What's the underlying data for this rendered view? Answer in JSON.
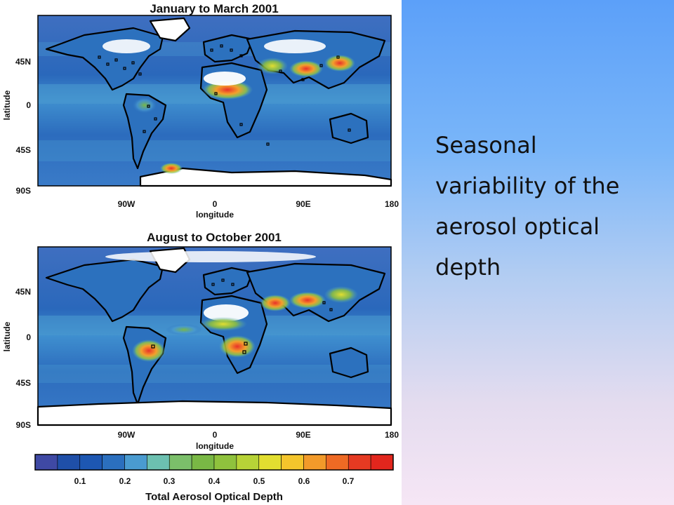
{
  "maps": [
    {
      "title": "January to March 2001",
      "y_axis_label": "latitude",
      "x_axis_label": "longitude",
      "lat_ticks": [
        "45N",
        "0",
        "45S",
        "90S"
      ],
      "lon_ticks": [
        "90W",
        "0",
        "90E",
        "180"
      ],
      "high_aerosol_regions": [
        "Sahara / West Africa",
        "Middle East",
        "South Asia",
        "East Asia"
      ]
    },
    {
      "title": "August to October 2001",
      "y_axis_label": "latitude",
      "x_axis_label": "longitude",
      "lat_ticks": [
        "45N",
        "0",
        "45S",
        "90S"
      ],
      "lon_ticks": [
        "90W",
        "0",
        "90E",
        "180"
      ],
      "high_aerosol_regions": [
        "Sahara",
        "Southern Africa",
        "South America",
        "South Asia",
        "East Asia"
      ]
    }
  ],
  "colorbar": {
    "title": "Total Aerosol Optical Depth",
    "tick_labels": [
      "0.1",
      "0.2",
      "0.3",
      "0.4",
      "0.5",
      "0.6",
      "0.7"
    ],
    "colors": [
      "#3f49a4",
      "#1f4fa8",
      "#1d57b2",
      "#2b6fbe",
      "#4a9bd0",
      "#6cc0b0",
      "#7bbf6a",
      "#79b845",
      "#8fc23d",
      "#b7d337",
      "#e2de30",
      "#f4c52c",
      "#f29a2a",
      "#ee6a24",
      "#e53a22",
      "#e2261d"
    ]
  },
  "caption": "Seasonal\nvariability of the\naerosol optical\ndepth"
}
